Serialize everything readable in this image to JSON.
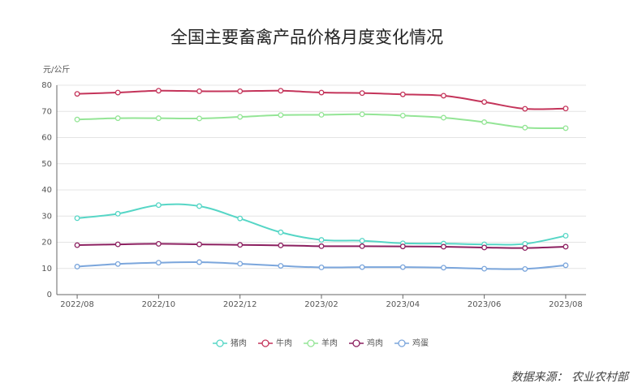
{
  "chart_data": {
    "type": "line",
    "title": "全国主要畜禽产品价格月度变化情况",
    "y_label": "元/公斤",
    "source": "数据来源： 农业农村部",
    "categories": [
      "2022/08",
      null,
      "2022/10",
      null,
      "2022/12",
      null,
      "2023/02",
      null,
      "2023/04",
      null,
      "2023/06",
      null,
      "2023/08"
    ],
    "ylim": [
      0,
      80
    ],
    "yticks": [
      0,
      10,
      20,
      30,
      40,
      50,
      60,
      70,
      80
    ],
    "grid": true,
    "legend": "bottom",
    "series": [
      {
        "name": "猪肉",
        "color": "#56d6c6",
        "values": [
          29.2,
          30.9,
          34.2,
          33.8,
          29.1,
          23.8,
          20.9,
          20.6,
          19.6,
          19.5,
          19.2,
          19.4,
          22.5
        ]
      },
      {
        "name": "牛肉",
        "color": "#c4345a",
        "values": [
          76.7,
          77.2,
          77.9,
          77.7,
          77.7,
          77.9,
          77.2,
          77.0,
          76.5,
          76.0,
          73.6,
          71.0,
          71.1
        ]
      },
      {
        "name": "羊肉",
        "color": "#94e596",
        "values": [
          66.9,
          67.4,
          67.4,
          67.3,
          67.9,
          68.6,
          68.7,
          68.9,
          68.4,
          67.6,
          65.9,
          63.8,
          63.6
        ]
      },
      {
        "name": "鸡肉",
        "color": "#8c2060",
        "values": [
          18.9,
          19.2,
          19.4,
          19.2,
          19.0,
          18.8,
          18.5,
          18.5,
          18.4,
          18.3,
          18.0,
          17.8,
          18.3
        ]
      },
      {
        "name": "鸡蛋",
        "color": "#7ba6dc",
        "values": [
          10.7,
          11.7,
          12.2,
          12.4,
          11.8,
          11.0,
          10.4,
          10.5,
          10.5,
          10.3,
          9.9,
          9.8,
          11.2
        ]
      }
    ]
  }
}
